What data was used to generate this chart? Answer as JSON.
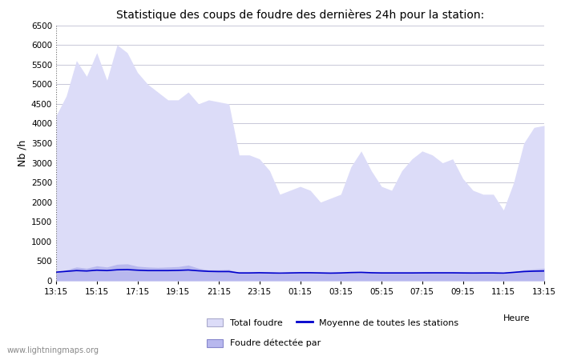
{
  "title": "Statistique des coups de foudre des dernières 24h pour la station:",
  "xlabel": "Heure",
  "ylabel": "Nb /h",
  "ylim": [
    0,
    6500
  ],
  "yticks": [
    0,
    500,
    1000,
    1500,
    2000,
    2500,
    3000,
    3500,
    4000,
    4500,
    5000,
    5500,
    6000,
    6500
  ],
  "xtick_labels": [
    "13:15",
    "15:15",
    "17:15",
    "19:15",
    "21:15",
    "23:15",
    "01:15",
    "03:15",
    "05:15",
    "07:15",
    "09:15",
    "11:15",
    "13:15"
  ],
  "watermark": "www.lightningmaps.org",
  "fill_color_total": "#dcdcf8",
  "fill_color_detected": "#b8b8ee",
  "line_color": "#0000cc",
  "background_color": "#ffffff",
  "grid_color": "#c8c8d8",
  "legend_total": "Total foudre",
  "legend_detected": "Foudre détectée par",
  "legend_mean": "Moyenne de toutes les stations",
  "total_foudre": [
    4200,
    4700,
    5600,
    5200,
    5800,
    5100,
    6000,
    5800,
    5300,
    5000,
    4800,
    4600,
    4600,
    4800,
    4500,
    4600,
    4550,
    4500,
    3200,
    3200,
    3100,
    2800,
    2200,
    2300,
    2400,
    2300,
    2000,
    2100,
    2200,
    2900,
    3300,
    2800,
    2400,
    2300,
    2800,
    3100,
    3300,
    3200,
    3000,
    3100,
    2600,
    2300,
    2200,
    2200,
    1800,
    2500,
    3500,
    3900,
    3950
  ],
  "foudre_detectee": [
    200,
    280,
    350,
    320,
    380,
    350,
    420,
    430,
    370,
    350,
    340,
    350,
    360,
    400,
    320,
    280,
    280,
    290,
    200,
    210,
    220,
    200,
    180,
    200,
    210,
    210,
    200,
    190,
    200,
    220,
    230,
    210,
    200,
    200,
    200,
    200,
    210,
    210,
    210,
    210,
    200,
    190,
    200,
    200,
    180,
    230,
    280,
    300,
    320
  ],
  "mean_line": [
    220,
    240,
    260,
    250,
    270,
    260,
    280,
    285,
    270,
    260,
    260,
    260,
    265,
    275,
    255,
    240,
    235,
    235,
    200,
    200,
    205,
    200,
    195,
    200,
    205,
    205,
    200,
    195,
    200,
    210,
    215,
    205,
    200,
    200,
    200,
    200,
    202,
    203,
    203,
    203,
    200,
    198,
    200,
    200,
    195,
    215,
    235,
    245,
    250
  ]
}
